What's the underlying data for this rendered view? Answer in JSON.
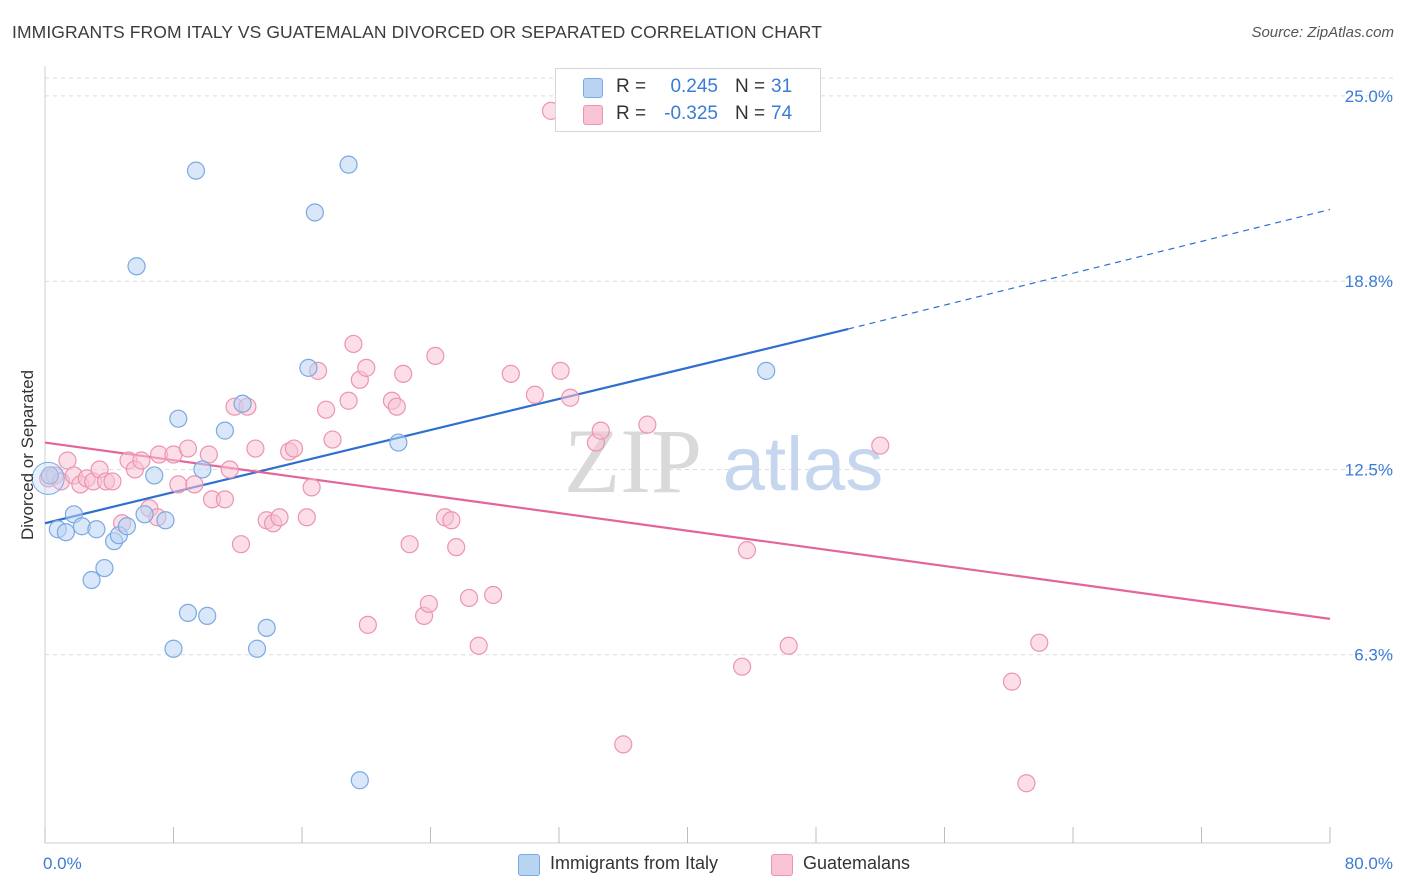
{
  "title": "IMMIGRANTS FROM ITALY VS GUATEMALAN DIVORCED OR SEPARATED CORRELATION CHART",
  "source": "Source: ZipAtlas.com",
  "watermark": {
    "zip": "ZIP",
    "atlas": "atlas"
  },
  "legend_top": [
    {
      "r_label": "R =",
      "r_value": "0.245",
      "n_label": "N =",
      "n_value": "31"
    },
    {
      "r_label": "R =",
      "r_value": "-0.325",
      "n_label": "N =",
      "n_value": "74"
    }
  ],
  "legend_bottom": [
    {
      "label": "Immigrants from Italy"
    },
    {
      "label": "Guatemalans"
    }
  ],
  "colors": {
    "italy_fill": "#b9d3f3",
    "italy_stroke": "#7aaae3",
    "italy_line": "#2f6fcf",
    "guat_fill": "#f8c3d4",
    "guat_stroke": "#ec94b1",
    "guat_line": "#e2669a",
    "tick_text": "#3a7bd5"
  },
  "chart_data": {
    "type": "scatter",
    "ylabel": "Divorced or Separated",
    "xlabel": "",
    "xlim": [
      0,
      80
    ],
    "ylim": [
      0,
      25.6
    ],
    "x_tick_labels": [
      "0.0%",
      "80.0%"
    ],
    "y_ticks": [
      6.3,
      12.5,
      18.8,
      25.0
    ],
    "y_tick_labels": [
      "6.3%",
      "12.5%",
      "18.8%",
      "25.0%"
    ],
    "grid": true,
    "legend_position": "top-center",
    "series": [
      {
        "name": "Immigrants from Italy",
        "r": 0.245,
        "n": 31,
        "points": [
          [
            0.3,
            12.3
          ],
          [
            0.8,
            10.5
          ],
          [
            1.3,
            10.4
          ],
          [
            1.8,
            11.0
          ],
          [
            2.3,
            10.6
          ],
          [
            2.9,
            8.8
          ],
          [
            3.2,
            10.5
          ],
          [
            3.7,
            9.2
          ],
          [
            4.3,
            10.1
          ],
          [
            4.6,
            10.3
          ],
          [
            5.1,
            10.6
          ],
          [
            6.2,
            11.0
          ],
          [
            6.8,
            12.3
          ],
          [
            7.5,
            10.8
          ],
          [
            8.0,
            6.5
          ],
          [
            8.3,
            14.2
          ],
          [
            8.9,
            7.7
          ],
          [
            9.4,
            22.5
          ],
          [
            9.8,
            12.5
          ],
          [
            10.1,
            7.6
          ],
          [
            11.2,
            13.8
          ],
          [
            12.3,
            14.7
          ],
          [
            13.2,
            6.5
          ],
          [
            13.8,
            7.2
          ],
          [
            16.4,
            15.9
          ],
          [
            16.8,
            21.1
          ],
          [
            18.9,
            22.7
          ],
          [
            19.6,
            2.1
          ],
          [
            22.0,
            13.4
          ],
          [
            5.7,
            19.3
          ],
          [
            44.9,
            15.8
          ]
        ],
        "trend": {
          "x0": 0,
          "y0": 10.7,
          "x1": 50,
          "y1": 17.2,
          "dash_to_x": 80,
          "dash_to_y": 21.2
        }
      },
      {
        "name": "Guatemalans",
        "r": -0.325,
        "n": 74,
        "points": [
          [
            0.2,
            12.2
          ],
          [
            0.6,
            12.3
          ],
          [
            1.0,
            12.1
          ],
          [
            1.4,
            12.8
          ],
          [
            1.8,
            12.3
          ],
          [
            2.2,
            12.0
          ],
          [
            2.6,
            12.2
          ],
          [
            3.0,
            12.1
          ],
          [
            3.4,
            12.5
          ],
          [
            3.8,
            12.1
          ],
          [
            4.2,
            12.1
          ],
          [
            4.8,
            10.7
          ],
          [
            5.2,
            12.8
          ],
          [
            5.6,
            12.5
          ],
          [
            6.0,
            12.8
          ],
          [
            6.5,
            11.2
          ],
          [
            7.0,
            10.9
          ],
          [
            7.1,
            13.0
          ],
          [
            8.0,
            13.0
          ],
          [
            8.3,
            12.0
          ],
          [
            8.9,
            13.2
          ],
          [
            9.3,
            12.0
          ],
          [
            10.2,
            13.0
          ],
          [
            10.4,
            11.5
          ],
          [
            11.2,
            11.5
          ],
          [
            11.5,
            12.5
          ],
          [
            11.8,
            14.6
          ],
          [
            12.2,
            10.0
          ],
          [
            12.6,
            14.6
          ],
          [
            13.1,
            13.2
          ],
          [
            13.8,
            10.8
          ],
          [
            14.2,
            10.7
          ],
          [
            14.6,
            10.9
          ],
          [
            15.2,
            13.1
          ],
          [
            15.5,
            13.2
          ],
          [
            16.3,
            10.9
          ],
          [
            16.6,
            11.9
          ],
          [
            17.0,
            15.8
          ],
          [
            17.5,
            14.5
          ],
          [
            17.9,
            13.5
          ],
          [
            18.9,
            14.8
          ],
          [
            19.2,
            16.7
          ],
          [
            19.6,
            15.5
          ],
          [
            20.0,
            15.9
          ],
          [
            21.6,
            14.8
          ],
          [
            21.9,
            14.6
          ],
          [
            22.3,
            15.7
          ],
          [
            22.7,
            10.0
          ],
          [
            23.6,
            7.6
          ],
          [
            23.9,
            8.0
          ],
          [
            24.3,
            16.3
          ],
          [
            24.9,
            10.9
          ],
          [
            25.3,
            10.8
          ],
          [
            25.6,
            9.9
          ],
          [
            26.4,
            8.2
          ],
          [
            27.0,
            6.6
          ],
          [
            27.9,
            8.3
          ],
          [
            29.0,
            15.7
          ],
          [
            30.5,
            15.0
          ],
          [
            31.5,
            24.5
          ],
          [
            32.1,
            15.8
          ],
          [
            32.7,
            14.9
          ],
          [
            34.3,
            13.4
          ],
          [
            34.6,
            13.8
          ],
          [
            36.0,
            3.3
          ],
          [
            37.5,
            14.0
          ],
          [
            43.4,
            5.9
          ],
          [
            43.7,
            9.8
          ],
          [
            46.3,
            6.6
          ],
          [
            52.0,
            13.3
          ],
          [
            60.2,
            5.4
          ],
          [
            61.1,
            2.0
          ],
          [
            61.9,
            6.7
          ],
          [
            20.1,
            7.3
          ]
        ],
        "trend": {
          "x0": 0,
          "y0": 13.4,
          "x1": 80,
          "y1": 7.5
        }
      }
    ]
  }
}
